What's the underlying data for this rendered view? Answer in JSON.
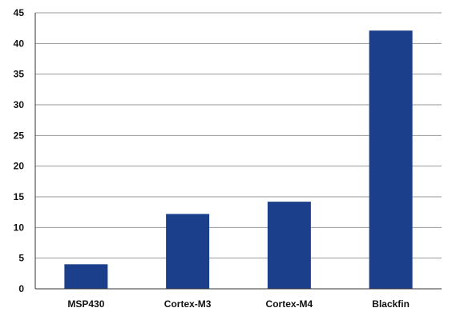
{
  "chart_data": {
    "type": "bar",
    "title": "",
    "xlabel": "",
    "ylabel": "",
    "categories": [
      "MSP430",
      "Cortex-M3",
      "Cortex-M4",
      "Blackfin"
    ],
    "values": [
      4,
      12.2,
      14.2,
      42.1
    ],
    "ylim": [
      0,
      45
    ],
    "yticks": [
      "0",
      "5",
      "10",
      "15",
      "20",
      "25",
      "30",
      "35",
      "40",
      "45"
    ],
    "grid": true,
    "legend": "none",
    "bar_color": "#1b3f8b",
    "grid_color": "#9a9a9a"
  }
}
